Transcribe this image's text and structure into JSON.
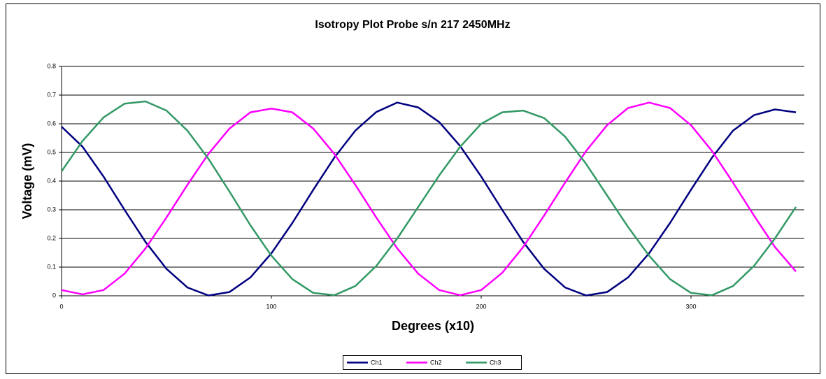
{
  "chart_data": {
    "type": "line",
    "title": "Isotropy Plot Probe s/n 217 2450MHz",
    "x_label": "Degrees (x10)",
    "y_label": "Voltage (mV)",
    "x": [
      0,
      10,
      20,
      30,
      40,
      50,
      60,
      70,
      80,
      90,
      100,
      110,
      120,
      130,
      140,
      150,
      160,
      170,
      180,
      190,
      200,
      210,
      220,
      230,
      240,
      250,
      260,
      270,
      280,
      290,
      300,
      310,
      320,
      330,
      340,
      350
    ],
    "series": [
      {
        "name": "Ch1",
        "color": "#000080",
        "values": [
          0.59,
          0.52,
          0.416,
          0.3,
          0.188,
          0.094,
          0.029,
          0.001,
          0.013,
          0.064,
          0.148,
          0.254,
          0.37,
          0.482,
          0.576,
          0.641,
          0.674,
          0.657,
          0.606,
          0.522,
          0.416,
          0.3,
          0.188,
          0.094,
          0.029,
          0.001,
          0.013,
          0.064,
          0.148,
          0.254,
          0.37,
          0.482,
          0.576,
          0.63,
          0.65,
          0.64
        ]
      },
      {
        "name": "Ch2",
        "color": "#ff00ff",
        "values": [
          0.02,
          0.005,
          0.02,
          0.077,
          0.165,
          0.273,
          0.387,
          0.495,
          0.583,
          0.64,
          0.653,
          0.64,
          0.583,
          0.495,
          0.387,
          0.273,
          0.165,
          0.077,
          0.02,
          0.002,
          0.02,
          0.08,
          0.17,
          0.28,
          0.395,
          0.505,
          0.595,
          0.655,
          0.674,
          0.655,
          0.595,
          0.505,
          0.395,
          0.28,
          0.17,
          0.085
        ]
      },
      {
        "name": "Ch3",
        "color": "#339966",
        "values": [
          0.434,
          0.54,
          0.622,
          0.67,
          0.678,
          0.646,
          0.576,
          0.478,
          0.364,
          0.246,
          0.14,
          0.058,
          0.01,
          0.002,
          0.034,
          0.104,
          0.2,
          0.31,
          0.42,
          0.52,
          0.6,
          0.64,
          0.646,
          0.62,
          0.555,
          0.46,
          0.35,
          0.24,
          0.14,
          0.058,
          0.01,
          0.002,
          0.034,
          0.104,
          0.2,
          0.31
        ]
      }
    ],
    "xlim": [
      0,
      354
    ],
    "xticks": [
      0,
      100,
      200,
      300
    ],
    "ylim": [
      0,
      0.8
    ],
    "yticks": [
      0,
      0.1,
      0.2,
      0.3,
      0.4,
      0.5,
      0.6,
      0.7,
      0.8
    ],
    "grid": true,
    "legend": "bottom"
  }
}
